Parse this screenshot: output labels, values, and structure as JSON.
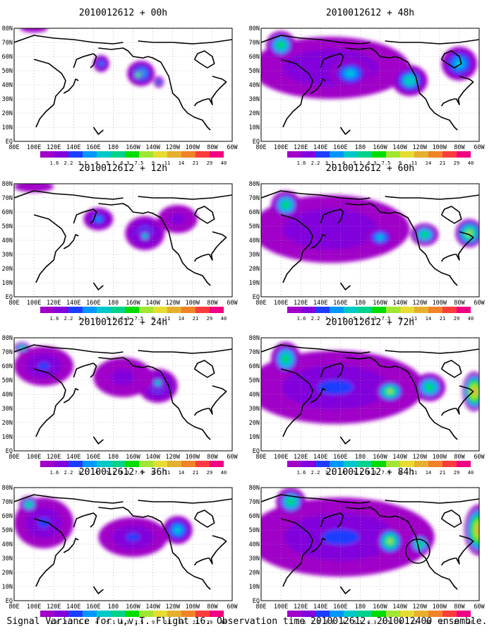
{
  "figure": {
    "caption": "Signal Variance for u,v,T. Flight 16. Observation time 2010012612. 2010012400 ensemble."
  },
  "colorbar": {
    "levels": [
      "1.6",
      "2.2",
      "3.1",
      "4",
      "5.1",
      "6.3",
      "7.5",
      "9",
      "11",
      "14",
      "21",
      "29",
      "40"
    ],
    "colors": [
      "#a000c8",
      "#8200dc",
      "#1e3cff",
      "#0096ff",
      "#00c8c8",
      "#00d28c",
      "#00dc00",
      "#a0e632",
      "#e6dc32",
      "#e6af2d",
      "#f08228",
      "#fa3c3c",
      "#f00082"
    ]
  },
  "axes": {
    "x_ticks": [
      "80E",
      "100E",
      "120E",
      "140E",
      "160E",
      "180",
      "160W",
      "140W",
      "120W",
      "100W",
      "80W",
      "60W"
    ],
    "y_ticks": [
      "EQ",
      "10N",
      "20N",
      "30N",
      "40N",
      "50N",
      "60N",
      "70N",
      "80N"
    ]
  },
  "chart_data": [
    {
      "type": "heatmap",
      "title": "2010012612 + 00h",
      "blobs": [
        {
          "lon": 168,
          "lat": 55,
          "rlon": 8,
          "rlat": 6,
          "v": 4
        },
        {
          "lon": 208,
          "lat": 48,
          "rlon": 14,
          "rlat": 9,
          "v": 5.1
        },
        {
          "lon": 205,
          "lat": 47,
          "rlon": 5,
          "rlat": 4,
          "v": 9
        },
        {
          "lon": 226,
          "lat": 42,
          "rlon": 5,
          "rlat": 4,
          "v": 4
        },
        {
          "lon": 100,
          "lat": 80,
          "rlon": 14,
          "rlat": 3,
          "v": 2
        }
      ]
    },
    {
      "type": "heatmap",
      "title": "2010012612 + 48h",
      "blobs": [
        {
          "lon": 150,
          "lat": 52,
          "rlon": 80,
          "rlat": 22,
          "v": 3
        },
        {
          "lon": 100,
          "lat": 68,
          "rlon": 15,
          "rlat": 10,
          "v": 7.5
        },
        {
          "lon": 170,
          "lat": 48,
          "rlon": 20,
          "rlat": 10,
          "v": 5.1
        },
        {
          "lon": 230,
          "lat": 43,
          "rlon": 18,
          "rlat": 11,
          "v": 6.3
        },
        {
          "lon": 280,
          "lat": 55,
          "rlon": 18,
          "rlat": 12,
          "v": 5.1
        }
      ]
    },
    {
      "type": "heatmap",
      "title": "2010012612 + 12h",
      "blobs": [
        {
          "lon": 165,
          "lat": 55,
          "rlon": 15,
          "rlat": 8,
          "v": 4
        },
        {
          "lon": 212,
          "lat": 45,
          "rlon": 20,
          "rlat": 12,
          "v": 4
        },
        {
          "lon": 212,
          "lat": 43,
          "rlon": 7,
          "rlat": 5,
          "v": 6.3
        },
        {
          "lon": 245,
          "lat": 55,
          "rlon": 20,
          "rlat": 10,
          "v": 2.5
        },
        {
          "lon": 100,
          "lat": 78,
          "rlon": 20,
          "rlat": 4,
          "v": 2
        }
      ]
    },
    {
      "type": "heatmap",
      "title": "2010012612 + 60h",
      "blobs": [
        {
          "lon": 150,
          "lat": 48,
          "rlon": 80,
          "rlat": 24,
          "v": 3
        },
        {
          "lon": 105,
          "lat": 65,
          "rlon": 15,
          "rlat": 10,
          "v": 7.5
        },
        {
          "lon": 245,
          "lat": 44,
          "rlon": 14,
          "rlat": 8,
          "v": 7.5
        },
        {
          "lon": 290,
          "lat": 45,
          "rlon": 14,
          "rlat": 10,
          "v": 9
        },
        {
          "lon": 200,
          "lat": 42,
          "rlon": 14,
          "rlat": 7,
          "v": 5.1
        }
      ]
    },
    {
      "type": "heatmap",
      "title": "2010012612 + 24h",
      "blobs": [
        {
          "lon": 110,
          "lat": 60,
          "rlon": 30,
          "rlat": 14,
          "v": 3.1
        },
        {
          "lon": 88,
          "lat": 73,
          "rlon": 8,
          "rlat": 4,
          "v": 7.5
        },
        {
          "lon": 225,
          "lat": 46,
          "rlon": 20,
          "rlat": 12,
          "v": 4
        },
        {
          "lon": 225,
          "lat": 48,
          "rlon": 8,
          "rlat": 5,
          "v": 6.3
        },
        {
          "lon": 190,
          "lat": 52,
          "rlon": 30,
          "rlat": 14,
          "v": 2.5
        }
      ]
    },
    {
      "type": "heatmap",
      "title": "2010012612 + 72h",
      "blobs": [
        {
          "lon": 155,
          "lat": 45,
          "rlon": 90,
          "rlat": 26,
          "v": 3.1
        },
        {
          "lon": 105,
          "lat": 65,
          "rlon": 15,
          "rlat": 12,
          "v": 7.5
        },
        {
          "lon": 210,
          "lat": 42,
          "rlon": 15,
          "rlat": 8,
          "v": 9
        },
        {
          "lon": 250,
          "lat": 45,
          "rlon": 16,
          "rlat": 10,
          "v": 7.5
        },
        {
          "lon": 295,
          "lat": 42,
          "rlon": 12,
          "rlat": 14,
          "v": 14
        }
      ]
    },
    {
      "type": "heatmap",
      "title": "2010012612 + 36h",
      "blobs": [
        {
          "lon": 110,
          "lat": 55,
          "rlon": 30,
          "rlat": 18,
          "v": 3.1
        },
        {
          "lon": 95,
          "lat": 68,
          "rlon": 10,
          "rlat": 6,
          "v": 7.5
        },
        {
          "lon": 200,
          "lat": 45,
          "rlon": 35,
          "rlat": 14,
          "v": 3.1
        },
        {
          "lon": 245,
          "lat": 50,
          "rlon": 15,
          "rlat": 10,
          "v": 5.1
        }
      ]
    },
    {
      "type": "heatmap",
      "title": "2010012612 + 84h",
      "blobs": [
        {
          "lon": 160,
          "lat": 45,
          "rlon": 95,
          "rlat": 28,
          "v": 3.1
        },
        {
          "lon": 110,
          "lat": 70,
          "rlon": 15,
          "rlat": 10,
          "v": 7.5
        },
        {
          "lon": 210,
          "lat": 42,
          "rlon": 14,
          "rlat": 10,
          "v": 9
        },
        {
          "lon": 240,
          "lat": 40,
          "rlon": 12,
          "rlat": 8,
          "v": 7.5
        },
        {
          "lon": 300,
          "lat": 50,
          "rlon": 15,
          "rlat": 18,
          "v": 14
        }
      ]
    }
  ]
}
